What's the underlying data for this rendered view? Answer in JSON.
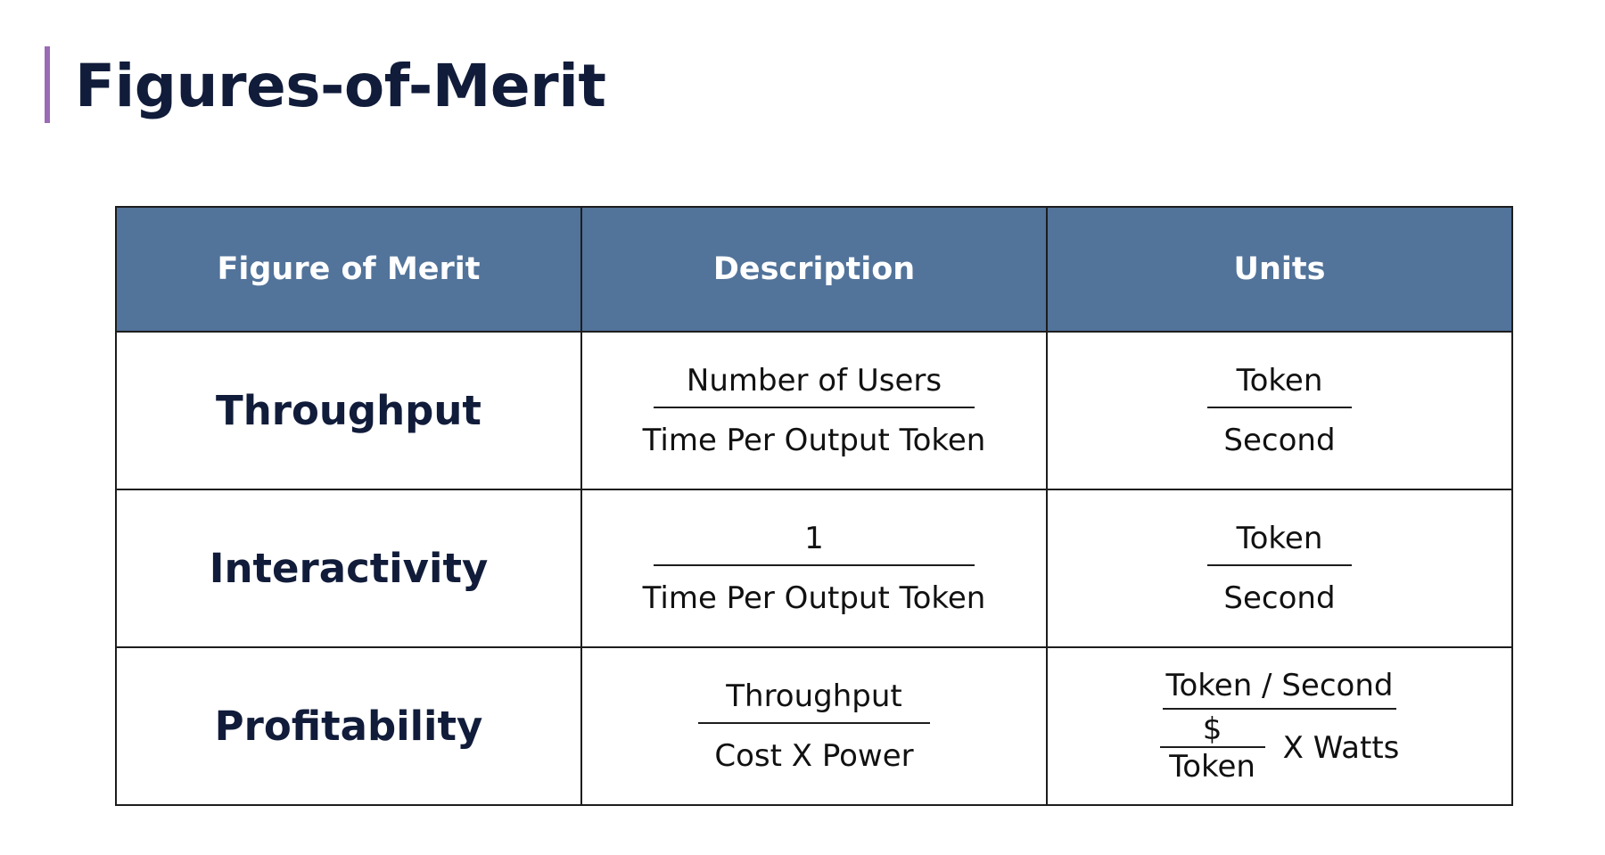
{
  "title": "Figures-of-Merit",
  "colors": {
    "accent": "#9b6bb5",
    "header_bg": "#52739a",
    "title_text": "#111c3a",
    "header_text": "#ffffff",
    "border": "#1d1d1d"
  },
  "table": {
    "headers": [
      "Figure of Merit",
      "Description",
      "Units"
    ],
    "rows": [
      {
        "name": "Throughput",
        "description": {
          "numerator": "Number of Users",
          "denominator": "Time Per Output Token"
        },
        "units": {
          "numerator": "Token",
          "denominator": "Second"
        }
      },
      {
        "name": "Interactivity",
        "description": {
          "numerator": "1",
          "denominator": "Time Per Output Token"
        },
        "units": {
          "numerator": "Token",
          "denominator": "Second"
        }
      },
      {
        "name": "Profitability",
        "description": {
          "numerator": "Throughput",
          "denominator": "Cost X Power"
        },
        "units": {
          "numerator": "Token / Second",
          "denominator_numerator": "$",
          "denominator_denominator": "Token",
          "multiplier": "X Watts"
        }
      }
    ]
  }
}
